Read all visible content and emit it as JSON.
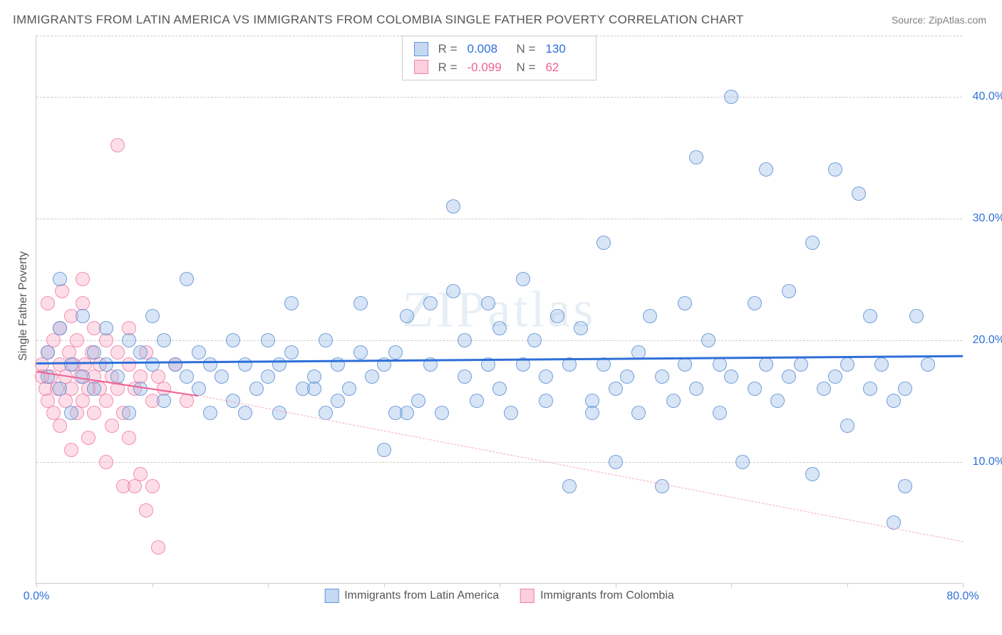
{
  "title": "IMMIGRANTS FROM LATIN AMERICA VS IMMIGRANTS FROM COLOMBIA SINGLE FATHER POVERTY CORRELATION CHART",
  "source": "Source: ZipAtlas.com",
  "ylabel": "Single Father Poverty",
  "watermark": "ZIPatlas",
  "chart": {
    "type": "scatter",
    "background_color": "#ffffff",
    "grid_color": "#cccccc",
    "xlim": [
      0,
      80
    ],
    "ylim": [
      0,
      45
    ],
    "xticks": [
      0,
      10,
      20,
      30,
      40,
      50,
      60,
      70,
      80
    ],
    "xtick_labels_shown": {
      "0": "0.0%",
      "80": "80.0%"
    },
    "yticks": [
      10,
      20,
      30,
      40
    ],
    "ytick_labels": {
      "10": "10.0%",
      "20": "20.0%",
      "30": "30.0%",
      "40": "40.0%"
    },
    "series_a": {
      "name": "Immigrants from Latin America",
      "color_fill": "rgba(140,180,230,0.35)",
      "color_stroke": "rgba(90,140,210,0.8)",
      "trend_color": "#2e6fd8",
      "trend": {
        "x1": 0,
        "y1": 18.2,
        "x2": 80,
        "y2": 18.8
      },
      "R": "0.008",
      "N": "130",
      "points": [
        [
          1,
          17
        ],
        [
          1,
          19
        ],
        [
          2,
          16
        ],
        [
          2,
          21
        ],
        [
          2,
          25
        ],
        [
          3,
          18
        ],
        [
          3,
          14
        ],
        [
          4,
          17
        ],
        [
          4,
          22
        ],
        [
          5,
          16
        ],
        [
          5,
          19
        ],
        [
          6,
          18
        ],
        [
          6,
          21
        ],
        [
          7,
          17
        ],
        [
          8,
          14
        ],
        [
          8,
          20
        ],
        [
          9,
          16
        ],
        [
          9,
          19
        ],
        [
          10,
          18
        ],
        [
          10,
          22
        ],
        [
          11,
          15
        ],
        [
          11,
          20
        ],
        [
          12,
          18
        ],
        [
          13,
          17
        ],
        [
          13,
          25
        ],
        [
          14,
          16
        ],
        [
          14,
          19
        ],
        [
          15,
          18
        ],
        [
          15,
          14
        ],
        [
          16,
          17
        ],
        [
          17,
          15
        ],
        [
          17,
          20
        ],
        [
          18,
          14
        ],
        [
          18,
          18
        ],
        [
          19,
          16
        ],
        [
          20,
          17
        ],
        [
          20,
          20
        ],
        [
          21,
          18
        ],
        [
          21,
          14
        ],
        [
          22,
          19
        ],
        [
          22,
          23
        ],
        [
          23,
          16
        ],
        [
          24,
          17
        ],
        [
          24,
          16
        ],
        [
          25,
          14
        ],
        [
          25,
          20
        ],
        [
          26,
          18
        ],
        [
          26,
          15
        ],
        [
          27,
          16
        ],
        [
          28,
          19
        ],
        [
          28,
          23
        ],
        [
          29,
          17
        ],
        [
          30,
          18
        ],
        [
          30,
          11
        ],
        [
          31,
          14
        ],
        [
          31,
          19
        ],
        [
          32,
          14
        ],
        [
          32,
          22
        ],
        [
          33,
          15
        ],
        [
          34,
          18
        ],
        [
          34,
          23
        ],
        [
          35,
          14
        ],
        [
          36,
          31
        ],
        [
          36,
          24
        ],
        [
          37,
          17
        ],
        [
          37,
          20
        ],
        [
          38,
          15
        ],
        [
          39,
          18
        ],
        [
          39,
          23
        ],
        [
          40,
          16
        ],
        [
          40,
          21
        ],
        [
          41,
          14
        ],
        [
          42,
          18
        ],
        [
          42,
          25
        ],
        [
          43,
          20
        ],
        [
          44,
          15
        ],
        [
          44,
          17
        ],
        [
          45,
          22
        ],
        [
          46,
          18
        ],
        [
          46,
          8
        ],
        [
          47,
          21
        ],
        [
          48,
          15
        ],
        [
          48,
          14
        ],
        [
          49,
          18
        ],
        [
          49,
          28
        ],
        [
          50,
          16
        ],
        [
          50,
          10
        ],
        [
          51,
          17
        ],
        [
          52,
          19
        ],
        [
          52,
          14
        ],
        [
          53,
          22
        ],
        [
          54,
          8
        ],
        [
          54,
          17
        ],
        [
          55,
          15
        ],
        [
          56,
          18
        ],
        [
          56,
          23
        ],
        [
          57,
          35
        ],
        [
          57,
          16
        ],
        [
          58,
          20
        ],
        [
          59,
          18
        ],
        [
          59,
          14
        ],
        [
          60,
          40
        ],
        [
          60,
          17
        ],
        [
          61,
          10
        ],
        [
          62,
          23
        ],
        [
          62,
          16
        ],
        [
          63,
          18
        ],
        [
          63,
          34
        ],
        [
          64,
          15
        ],
        [
          65,
          24
        ],
        [
          65,
          17
        ],
        [
          66,
          18
        ],
        [
          67,
          28
        ],
        [
          67,
          9
        ],
        [
          68,
          16
        ],
        [
          69,
          17
        ],
        [
          69,
          34
        ],
        [
          70,
          13
        ],
        [
          70,
          18
        ],
        [
          71,
          32
        ],
        [
          72,
          22
        ],
        [
          72,
          16
        ],
        [
          73,
          18
        ],
        [
          74,
          5
        ],
        [
          74,
          15
        ],
        [
          75,
          8
        ],
        [
          75,
          16
        ],
        [
          76,
          22
        ],
        [
          77,
          18
        ]
      ]
    },
    "series_b": {
      "name": "Immigrants from Colombia",
      "color_fill": "rgba(250,160,190,0.35)",
      "color_stroke": "rgba(240,120,160,0.8)",
      "trend_color": "#f06292",
      "trend_solid": {
        "x1": 0,
        "y1": 17.5,
        "x2": 14,
        "y2": 15.5
      },
      "trend_dashed": {
        "x1": 14,
        "y1": 15.5,
        "x2": 80,
        "y2": 3.5
      },
      "R": "-0.099",
      "N": "62",
      "points": [
        [
          0.5,
          17
        ],
        [
          0.5,
          18
        ],
        [
          0.8,
          16
        ],
        [
          1,
          19
        ],
        [
          1,
          15
        ],
        [
          1,
          23
        ],
        [
          1.2,
          17
        ],
        [
          1.5,
          14
        ],
        [
          1.5,
          20
        ],
        [
          1.8,
          16
        ],
        [
          2,
          18
        ],
        [
          2,
          21
        ],
        [
          2,
          13
        ],
        [
          2.2,
          24
        ],
        [
          2.5,
          17
        ],
        [
          2.5,
          15
        ],
        [
          2.8,
          19
        ],
        [
          3,
          16
        ],
        [
          3,
          22
        ],
        [
          3,
          11
        ],
        [
          3.2,
          18
        ],
        [
          3.5,
          14
        ],
        [
          3.5,
          20
        ],
        [
          3.8,
          17
        ],
        [
          4,
          15
        ],
        [
          4,
          23
        ],
        [
          4,
          25
        ],
        [
          4.2,
          18
        ],
        [
          4.5,
          16
        ],
        [
          4.5,
          12
        ],
        [
          4.8,
          19
        ],
        [
          5,
          17
        ],
        [
          5,
          14
        ],
        [
          5,
          21
        ],
        [
          5.5,
          16
        ],
        [
          5.5,
          18
        ],
        [
          6,
          15
        ],
        [
          6,
          10
        ],
        [
          6,
          20
        ],
        [
          6.5,
          17
        ],
        [
          6.5,
          13
        ],
        [
          7,
          36
        ],
        [
          7,
          16
        ],
        [
          7,
          19
        ],
        [
          7.5,
          14
        ],
        [
          7.5,
          8
        ],
        [
          8,
          18
        ],
        [
          8,
          21
        ],
        [
          8,
          12
        ],
        [
          8.5,
          16
        ],
        [
          8.5,
          8
        ],
        [
          9,
          17
        ],
        [
          9,
          9
        ],
        [
          9.5,
          6
        ],
        [
          9.5,
          19
        ],
        [
          10,
          15
        ],
        [
          10,
          8
        ],
        [
          10.5,
          3
        ],
        [
          10.5,
          17
        ],
        [
          11,
          16
        ],
        [
          12,
          18
        ],
        [
          13,
          15
        ]
      ]
    }
  },
  "legend": {
    "series_a_label": "Immigrants from Latin America",
    "series_b_label": "Immigrants from Colombia"
  },
  "stats": {
    "r_label": "R =",
    "n_label": "N ="
  }
}
